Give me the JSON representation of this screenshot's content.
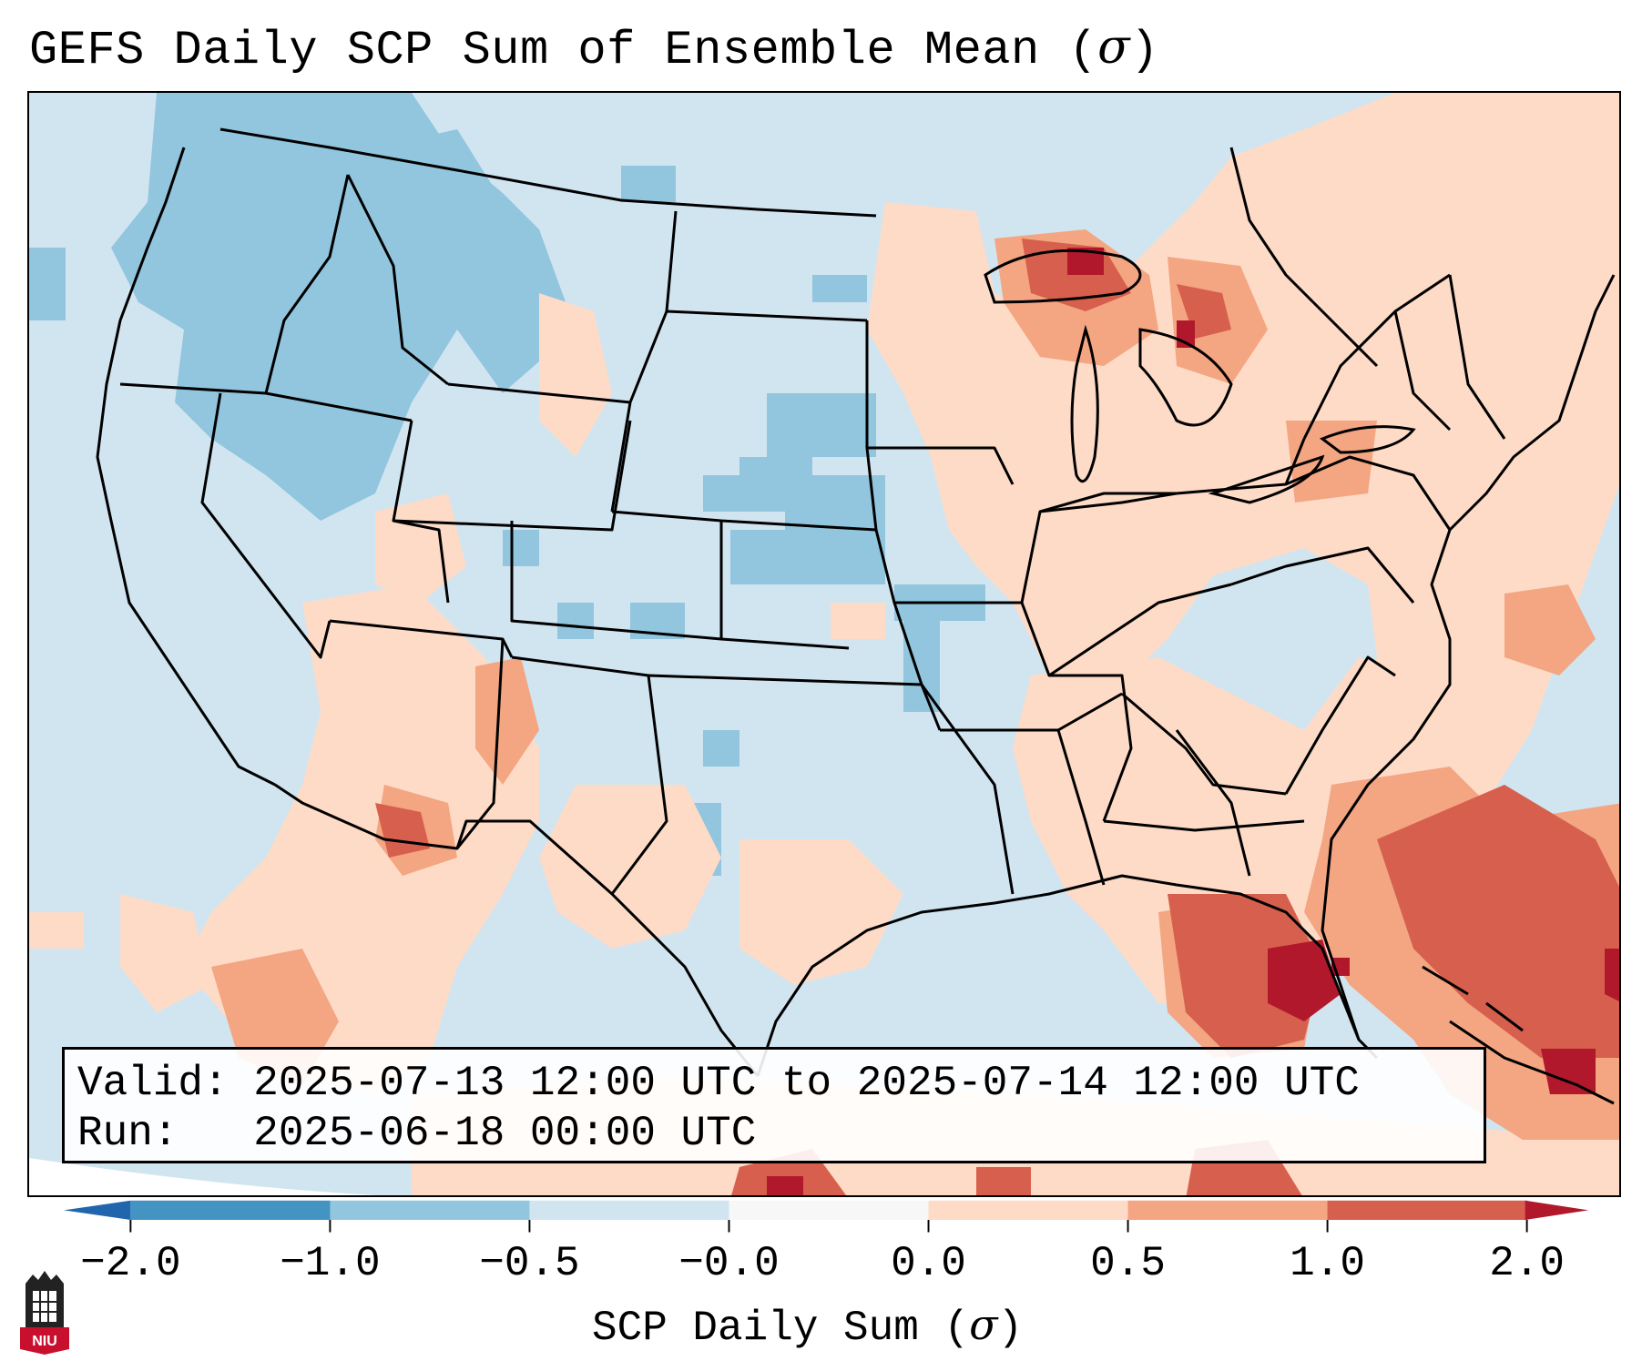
{
  "title": {
    "prefix": "GEFS Daily SCP Sum of Ensemble Mean (",
    "symbol": "σ",
    "suffix": ")"
  },
  "map": {
    "projection": "Lambert Conformal, CONUS",
    "background_color": "#d1e5f0",
    "linework": [
      "coastlines",
      "state-borders",
      "country-borders",
      "great-lakes"
    ]
  },
  "info": {
    "valid_label": "Valid:",
    "valid_value": "2025-07-13 12:00 UTC to 2025-07-14 12:00 UTC",
    "run_label": "Run:",
    "run_value": "2025-06-18 00:00 UTC"
  },
  "colorbar": {
    "label_prefix": "SCP Daily Sum (",
    "label_symbol": "σ",
    "label_suffix": ")",
    "ticks": [
      "−2.0",
      "−1.0",
      "−0.5",
      "−0.0",
      "0.0",
      "0.5",
      "1.0",
      "2.0"
    ],
    "bins": [
      {
        "range": "-2.0 to -1.0",
        "color": "#4393c3"
      },
      {
        "range": "-1.0 to -0.5",
        "color": "#92c5de"
      },
      {
        "range": "-0.5 to -0.0",
        "color": "#d1e5f0"
      },
      {
        "range": "-0.0 to 0.0",
        "color": "#f7f7f7"
      },
      {
        "range": "0.0 to 0.5",
        "color": "#fddbc7"
      },
      {
        "range": "0.5 to 1.0",
        "color": "#f4a582"
      },
      {
        "range": "1.0 to 2.0",
        "color": "#d6604d"
      }
    ],
    "under_color": "#2166ac",
    "over_color": "#b2182b"
  },
  "logo": {
    "text": "NIU"
  }
}
